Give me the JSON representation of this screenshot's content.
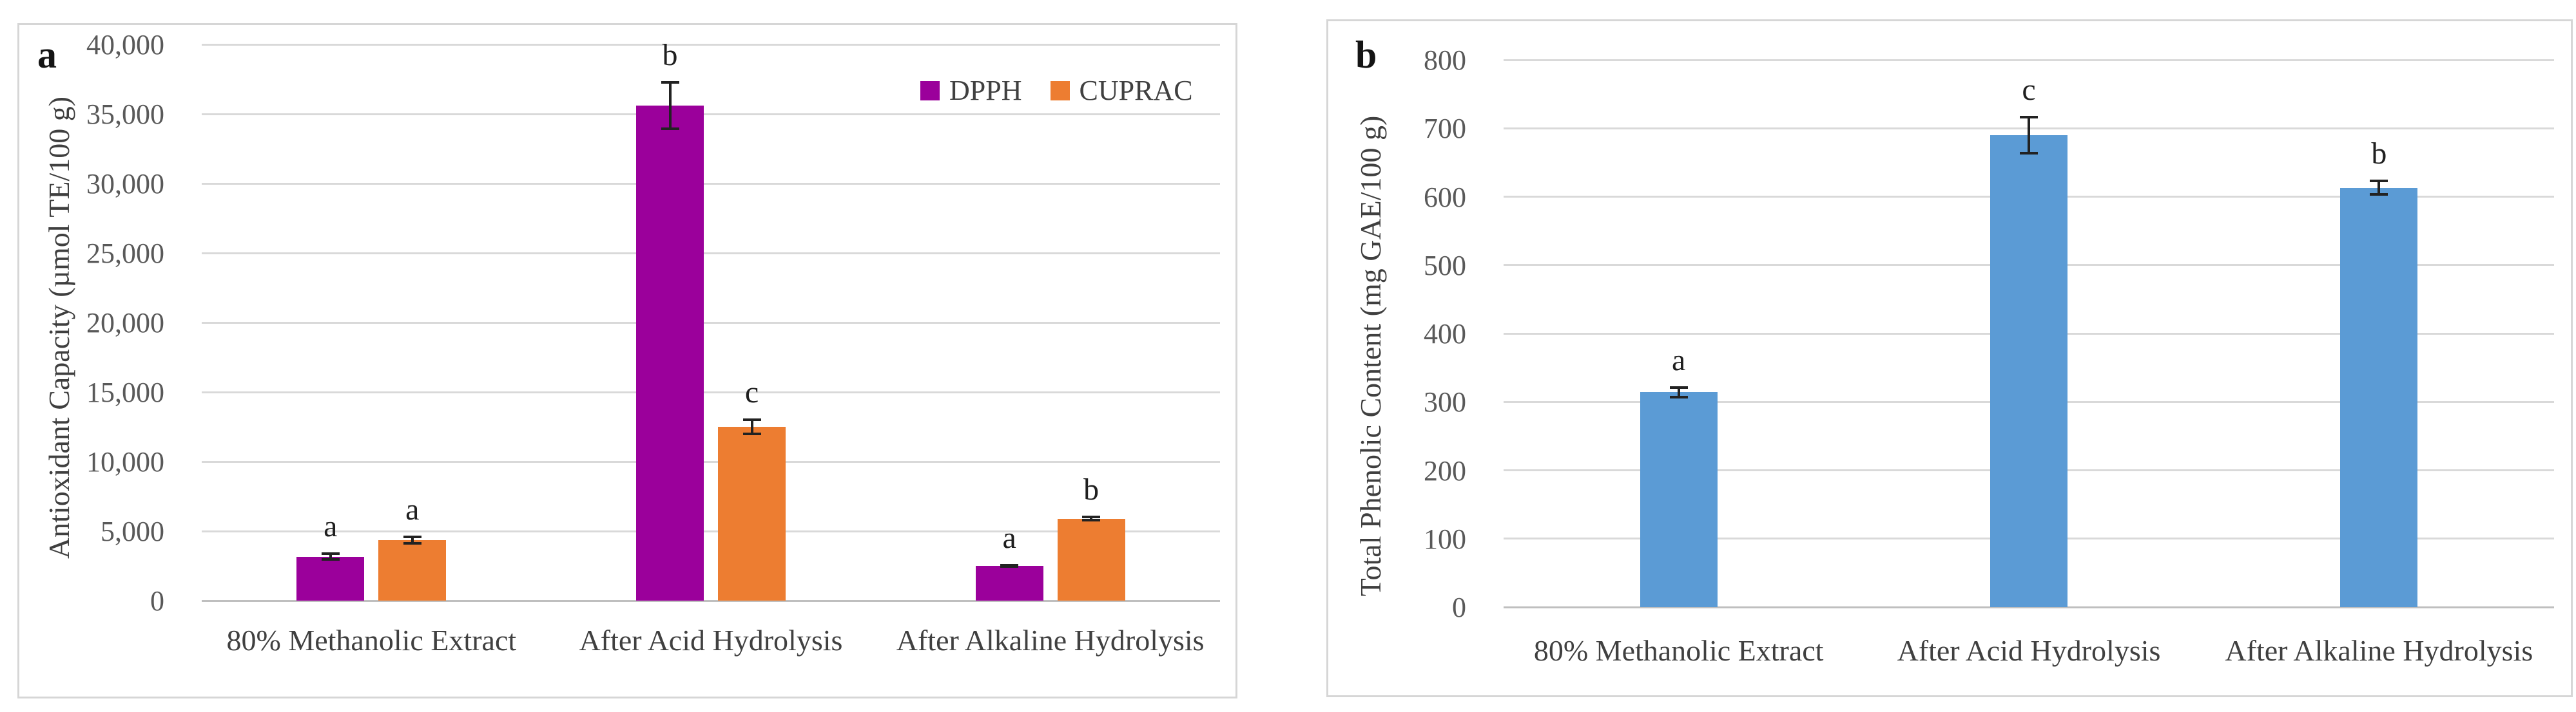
{
  "figure": {
    "panels": [
      {
        "panel_label": "a"
      },
      {
        "panel_label": "b"
      }
    ]
  },
  "chart_data": [
    {
      "type": "bar",
      "panel": "a",
      "title": "",
      "xlabel": "",
      "ylabel": "Antioxidant Capacity (µmol TE/100 g)",
      "categories": [
        "80% Methanolic Extract",
        "After Acid Hydrolysis",
        "After Alkaline Hydrolysis"
      ],
      "series": [
        {
          "name": "DPPH",
          "color": "#9B009B",
          "values": [
            3150,
            35600,
            2500
          ],
          "errors": [
            300,
            1750,
            120
          ],
          "sig_letters": [
            "a",
            "b",
            "a"
          ]
        },
        {
          "name": "CUPRAC",
          "color": "#ED7D31",
          "values": [
            4350,
            12500,
            5900
          ],
          "errors": [
            320,
            600,
            220
          ],
          "sig_letters": [
            "a",
            "c",
            "b"
          ]
        }
      ],
      "ylim": [
        0,
        40000
      ],
      "ytick_step": 5000,
      "ytick_labels": [
        "0",
        "5,000",
        "10,000",
        "15,000",
        "20,000",
        "25,000",
        "30,000",
        "35,000",
        "40,000"
      ],
      "grid": true,
      "legend_position": "top-right"
    },
    {
      "type": "bar",
      "panel": "b",
      "title": "",
      "xlabel": "",
      "ylabel": "Total Phenolic Content (mg GAE/100 g)",
      "categories": [
        "80% Methanolic Extract",
        "After Acid Hydrolysis",
        "After Alkaline Hydrolysis"
      ],
      "series": [
        {
          "name": "Total Phenolic Content",
          "color": "#5B9BD5",
          "values": [
            314,
            690,
            613
          ],
          "errors": [
            9,
            28,
            12
          ],
          "sig_letters": [
            "a",
            "c",
            "b"
          ]
        }
      ],
      "ylim": [
        0,
        800
      ],
      "ytick_step": 100,
      "ytick_labels": [
        "0",
        "100",
        "200",
        "300",
        "400",
        "500",
        "600",
        "700",
        "800"
      ],
      "grid": true,
      "legend_position": "none"
    }
  ]
}
